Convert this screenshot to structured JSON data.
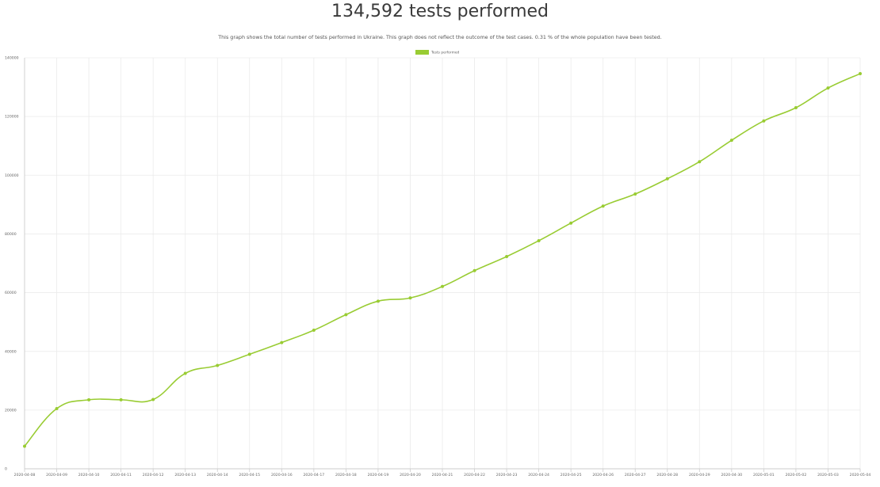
{
  "header": {
    "title": "134,592 tests performed",
    "subtitle": "This graph shows the total number of tests performed in Ukraine. This graph does not reflect the outcome of the test cases. 0.31 % of the whole population have been tested."
  },
  "colors": {
    "line": "#99cc33",
    "grid": "#ebebeb",
    "axis": "#cccccc",
    "text": "#666666"
  },
  "chart_data": {
    "type": "line",
    "title": "134,592 tests performed",
    "subtitle": "This graph shows the total number of tests performed in Ukraine. This graph does not reflect the outcome of the test cases. 0.31 % of the whole population have been tested.",
    "legend": {
      "position": "top",
      "entries": [
        "Tests performed"
      ]
    },
    "grid": true,
    "ylim": [
      0,
      140000
    ],
    "yticks": [
      "0",
      "20000",
      "40000",
      "60000",
      "80000",
      "100000",
      "120000",
      "140000"
    ],
    "categories": [
      "2020-04-08",
      "2020-04-09",
      "2020-04-10",
      "2020-04-11",
      "2020-04-12",
      "2020-04-13",
      "2020-04-14",
      "2020-04-15",
      "2020-04-16",
      "2020-04-17",
      "2020-04-18",
      "2020-04-19",
      "2020-04-20",
      "2020-04-21",
      "2020-04-22",
      "2020-04-23",
      "2020-04-24",
      "2020-04-25",
      "2020-04-26",
      "2020-04-27",
      "2020-04-28",
      "2020-04-29",
      "2020-04-30",
      "2020-05-01",
      "2020-05-02",
      "2020-05-03",
      "2020-05-04"
    ],
    "series": [
      {
        "name": "Tests performed",
        "values": [
          7700,
          20500,
          23500,
          23500,
          23600,
          32500,
          35200,
          39000,
          43000,
          47200,
          52500,
          57100,
          58200,
          62100,
          67500,
          72300,
          77700,
          83700,
          89500,
          93600,
          98800,
          104600,
          111900,
          118500,
          123000,
          129700,
          134592
        ]
      }
    ]
  }
}
